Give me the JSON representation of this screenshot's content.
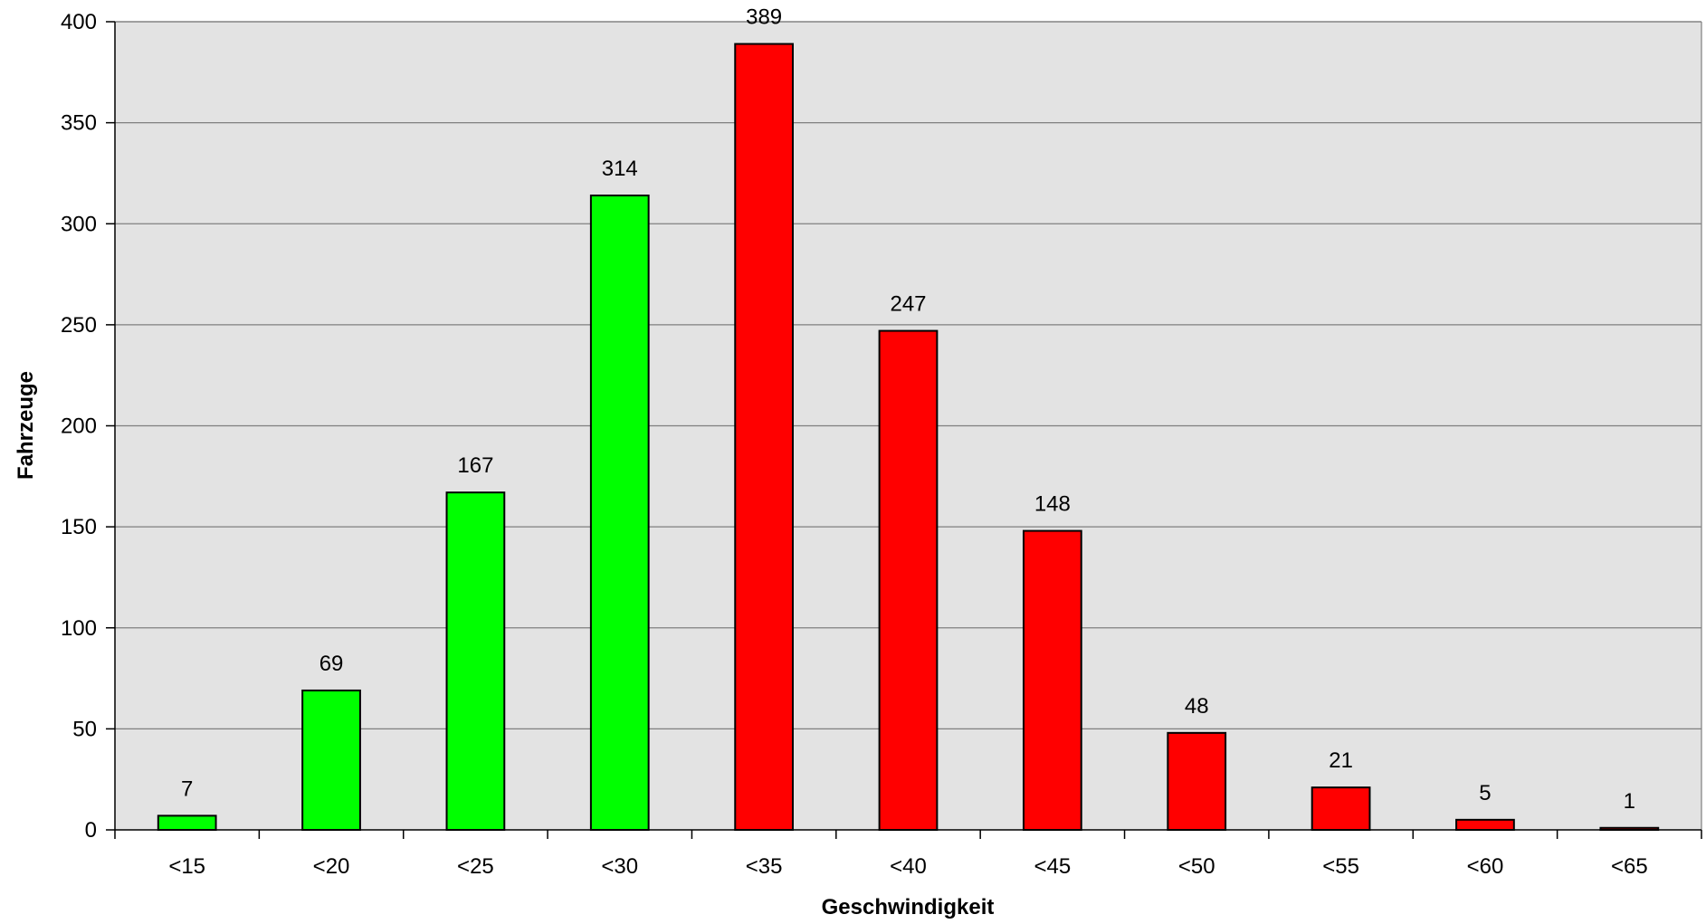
{
  "chart_data": {
    "type": "bar",
    "title": "",
    "xlabel": "Geschwindigkeit",
    "ylabel": "Fahrzeuge",
    "categories": [
      "<15",
      "<20",
      "<25",
      "<30",
      "<35",
      "<40",
      "<45",
      "<50",
      "<55",
      "<60",
      "<65"
    ],
    "values": [
      7,
      69,
      167,
      314,
      389,
      247,
      148,
      48,
      21,
      5,
      1
    ],
    "bar_colors": [
      "#00ff00",
      "#00ff00",
      "#00ff00",
      "#00ff00",
      "#ff0000",
      "#ff0000",
      "#ff0000",
      "#ff0000",
      "#ff0000",
      "#ff0000",
      "#ff0000"
    ],
    "ylim": [
      0,
      400
    ],
    "yticks": [
      0,
      50,
      100,
      150,
      200,
      250,
      300,
      350,
      400
    ],
    "grid": true,
    "legend": "none",
    "plot_background": "#e3e3e3",
    "data_labels": true
  }
}
